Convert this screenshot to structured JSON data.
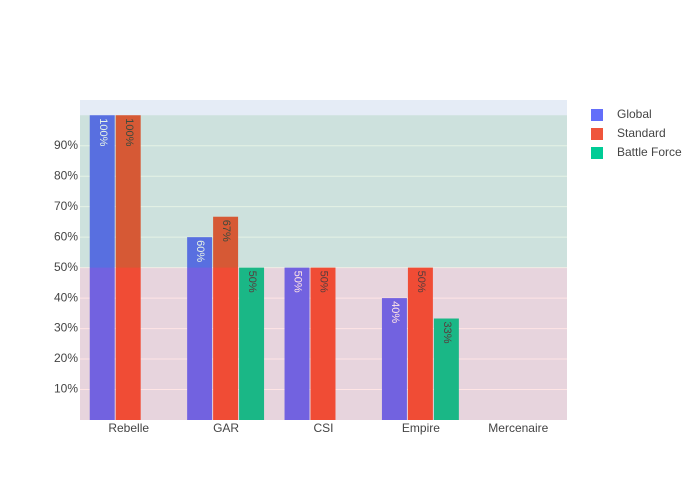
{
  "chart_data": {
    "type": "bar",
    "categories": [
      "Rebelle",
      "GAR",
      "CSI",
      "Empire",
      "Mercenaire"
    ],
    "series": [
      {
        "name": "Global",
        "color": "#636efa",
        "label_color": "#ffffff",
        "values": [
          100,
          60,
          50,
          40,
          null
        ],
        "value_labels": [
          "100%",
          "60%",
          "50%",
          "40%",
          null
        ]
      },
      {
        "name": "Standard",
        "color": "#ef553b",
        "label_color": "#444444",
        "values": [
          100,
          66.7,
          50,
          50,
          null
        ],
        "value_labels": [
          "100%",
          "67%",
          "50%",
          "50%",
          null
        ]
      },
      {
        "name": "Battle Force",
        "color": "#00cc96",
        "label_color": "#444444",
        "values": [
          null,
          50,
          null,
          33.3,
          null
        ],
        "value_labels": [
          null,
          "50%",
          null,
          "33%",
          null
        ]
      }
    ],
    "ylim": [
      0,
      105
    ],
    "yticks": [
      {
        "value": 10,
        "label": "10%"
      },
      {
        "value": 20,
        "label": "20%"
      },
      {
        "value": 30,
        "label": "30%"
      },
      {
        "value": 40,
        "label": "40%"
      },
      {
        "value": 50,
        "label": "50%"
      },
      {
        "value": 60,
        "label": "60%"
      },
      {
        "value": 70,
        "label": "70%"
      },
      {
        "value": 80,
        "label": "80%"
      },
      {
        "value": 90,
        "label": "90%"
      }
    ],
    "bands": [
      {
        "from": 0,
        "to": 50,
        "color": "rgba(255,0,0,0.1)"
      },
      {
        "from": 50,
        "to": 100,
        "color": "rgba(0,128,0,0.1)"
      }
    ],
    "grid": true,
    "legend": "right"
  }
}
